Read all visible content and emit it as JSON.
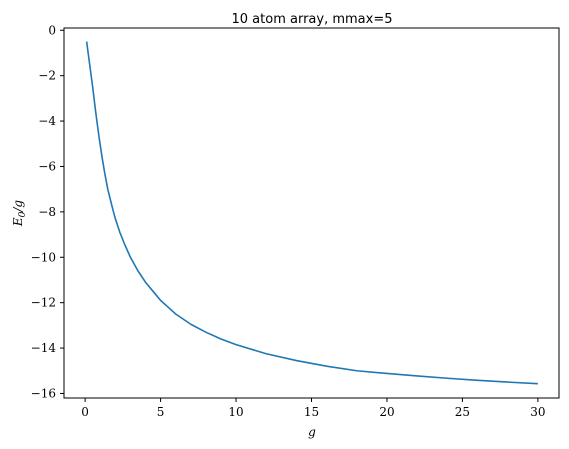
{
  "chart_data": {
    "type": "line",
    "title": "10 atom array, mmax=5",
    "xlabel": "g",
    "ylabel_main": "E",
    "ylabel_sub": "0",
    "ylabel_tail": "/g",
    "xlim": [
      -1.4,
      31.4
    ],
    "ylim": [
      -16.2,
      0.1
    ],
    "xticks": [
      0,
      5,
      10,
      15,
      20,
      25,
      30
    ],
    "yticks": [
      0,
      -2,
      -4,
      -6,
      -8,
      -10,
      -12,
      -14,
      -16
    ],
    "xtick_labels": [
      "0",
      "5",
      "10",
      "15",
      "20",
      "25",
      "30"
    ],
    "ytick_labels": [
      "0",
      "−2",
      "−4",
      "−6",
      "−8",
      "−10",
      "−12",
      "−14",
      "−16"
    ],
    "grid": false,
    "series": [
      {
        "color": "#1f77b4",
        "x": [
          0.1,
          0.3,
          0.5,
          0.7,
          0.9,
          1.1,
          1.3,
          1.5,
          1.8,
          2.0,
          2.3,
          2.6,
          3.0,
          3.5,
          4.0,
          4.5,
          5.0,
          5.5,
          6.0,
          7.0,
          8.0,
          9.0,
          10.0,
          12.0,
          14.0,
          16.0,
          18.0,
          20.0,
          22.0,
          24.0,
          26.0,
          28.0,
          30.0
        ],
        "y": [
          -0.5,
          -1.5,
          -2.5,
          -3.6,
          -4.6,
          -5.5,
          -6.3,
          -7.0,
          -7.8,
          -8.3,
          -8.9,
          -9.4,
          -10.0,
          -10.6,
          -11.1,
          -11.5,
          -11.9,
          -12.2,
          -12.5,
          -12.95,
          -13.3,
          -13.6,
          -13.85,
          -14.25,
          -14.55,
          -14.8,
          -15.0,
          -15.12,
          -15.23,
          -15.33,
          -15.42,
          -15.5,
          -15.57
        ]
      }
    ]
  }
}
